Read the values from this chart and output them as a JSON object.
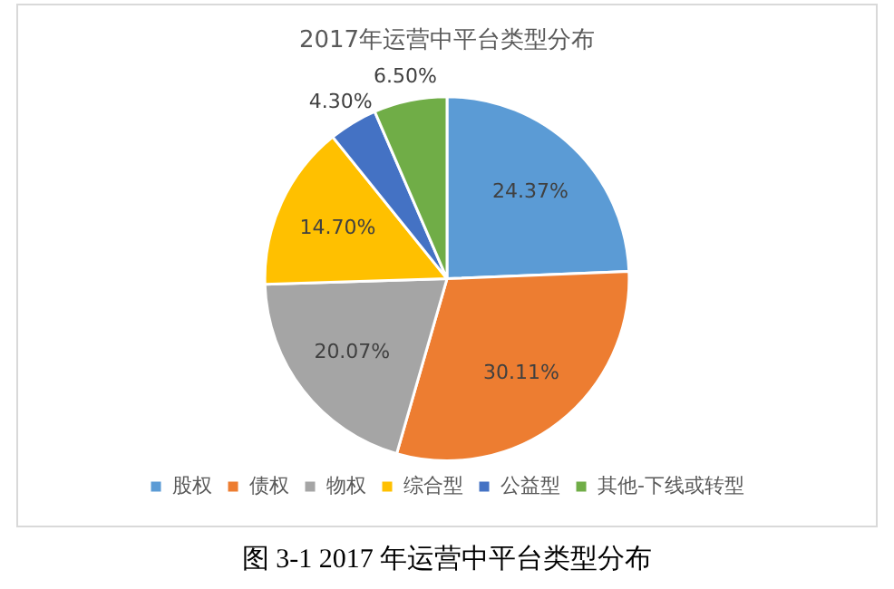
{
  "chart_data": {
    "type": "pie",
    "title": "2017年运营中平台类型分布",
    "categories": [
      "股权",
      "债权",
      "物权",
      "综合型",
      "公益型",
      "其他-下线或转型"
    ],
    "values": [
      24.37,
      30.11,
      20.07,
      14.7,
      4.3,
      6.5
    ],
    "value_labels": [
      "24.37%",
      "30.11%",
      "20.07%",
      "14.70%",
      "4.30%",
      "6.50%"
    ],
    "colors": [
      "#5b9bd5",
      "#ed7d31",
      "#a5a5a5",
      "#ffc000",
      "#4472c4",
      "#70ad47"
    ],
    "legend": "bottom",
    "annotations": [
      "图 3-1 2017 年运营中平台类型分布"
    ]
  }
}
